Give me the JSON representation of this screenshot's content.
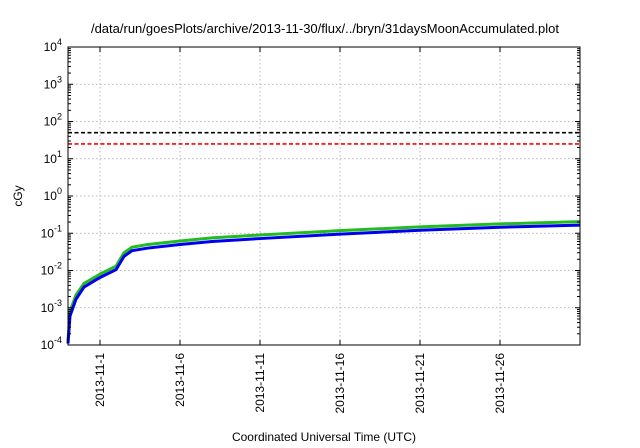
{
  "chart_data": {
    "type": "line",
    "title": "/data/run/goesPlots/archive/2013-11-30/flux/../bryn/31daysMoonAccumulated.plot",
    "xlabel": "Coordinated Universal Time (UTC)",
    "ylabel": "cGy",
    "y_scale": "log",
    "ylim": [
      0.0001,
      10000
    ],
    "xlim": [
      "2013-10-30",
      "2013-12-01"
    ],
    "grid": true,
    "y_ticks": [
      {
        "value": 0.0001,
        "base": "10",
        "exp": "-4"
      },
      {
        "value": 0.001,
        "base": "10",
        "exp": "-3"
      },
      {
        "value": 0.01,
        "base": "10",
        "exp": "-2"
      },
      {
        "value": 0.1,
        "base": "10",
        "exp": "-1"
      },
      {
        "value": 1,
        "base": "10",
        "exp": "0"
      },
      {
        "value": 10,
        "base": "10",
        "exp": "1"
      },
      {
        "value": 100,
        "base": "10",
        "exp": "2"
      },
      {
        "value": 1000,
        "base": "10",
        "exp": "3"
      },
      {
        "value": 10000,
        "base": "10",
        "exp": "4"
      }
    ],
    "x_ticks": [
      "2013-11-1",
      "2013-11-6",
      "2013-11-11",
      "2013-11-16",
      "2013-11-21",
      "2013-11-26"
    ],
    "x_tick_dates": [
      "2013-11-01",
      "2013-11-06",
      "2013-11-11",
      "2013-11-16",
      "2013-11-21",
      "2013-11-26"
    ],
    "reference_lines": [
      {
        "value": 50,
        "color": "#000000"
      },
      {
        "value": 25,
        "color": "#ff0000"
      }
    ],
    "series": [
      {
        "color": "#22bb22",
        "x": [
          "2013-10-30",
          "2013-10-30 03:00",
          "2013-10-30 12:00",
          "2013-10-31",
          "2013-11-01",
          "2013-11-02",
          "2013-11-02 12:00",
          "2013-11-03",
          "2013-11-04",
          "2013-11-06",
          "2013-11-08",
          "2013-11-11",
          "2013-11-16",
          "2013-11-21",
          "2013-11-26",
          "2013-12-01"
        ],
        "values": [
          0.00013,
          0.0008,
          0.0022,
          0.0045,
          0.008,
          0.013,
          0.03,
          0.042,
          0.05,
          0.062,
          0.075,
          0.09,
          0.118,
          0.148,
          0.178,
          0.205
        ]
      },
      {
        "color": "#0000ee",
        "x": [
          "2013-10-30",
          "2013-10-30 03:00",
          "2013-10-30 12:00",
          "2013-10-31",
          "2013-11-01",
          "2013-11-02",
          "2013-11-02 12:00",
          "2013-11-03",
          "2013-11-04",
          "2013-11-06",
          "2013-11-08",
          "2013-11-11",
          "2013-11-16",
          "2013-11-21",
          "2013-11-26",
          "2013-12-01"
        ],
        "values": [
          0.00011,
          0.0006,
          0.0017,
          0.0036,
          0.0065,
          0.0105,
          0.024,
          0.034,
          0.04,
          0.05,
          0.06,
          0.072,
          0.095,
          0.12,
          0.145,
          0.165
        ]
      }
    ]
  }
}
